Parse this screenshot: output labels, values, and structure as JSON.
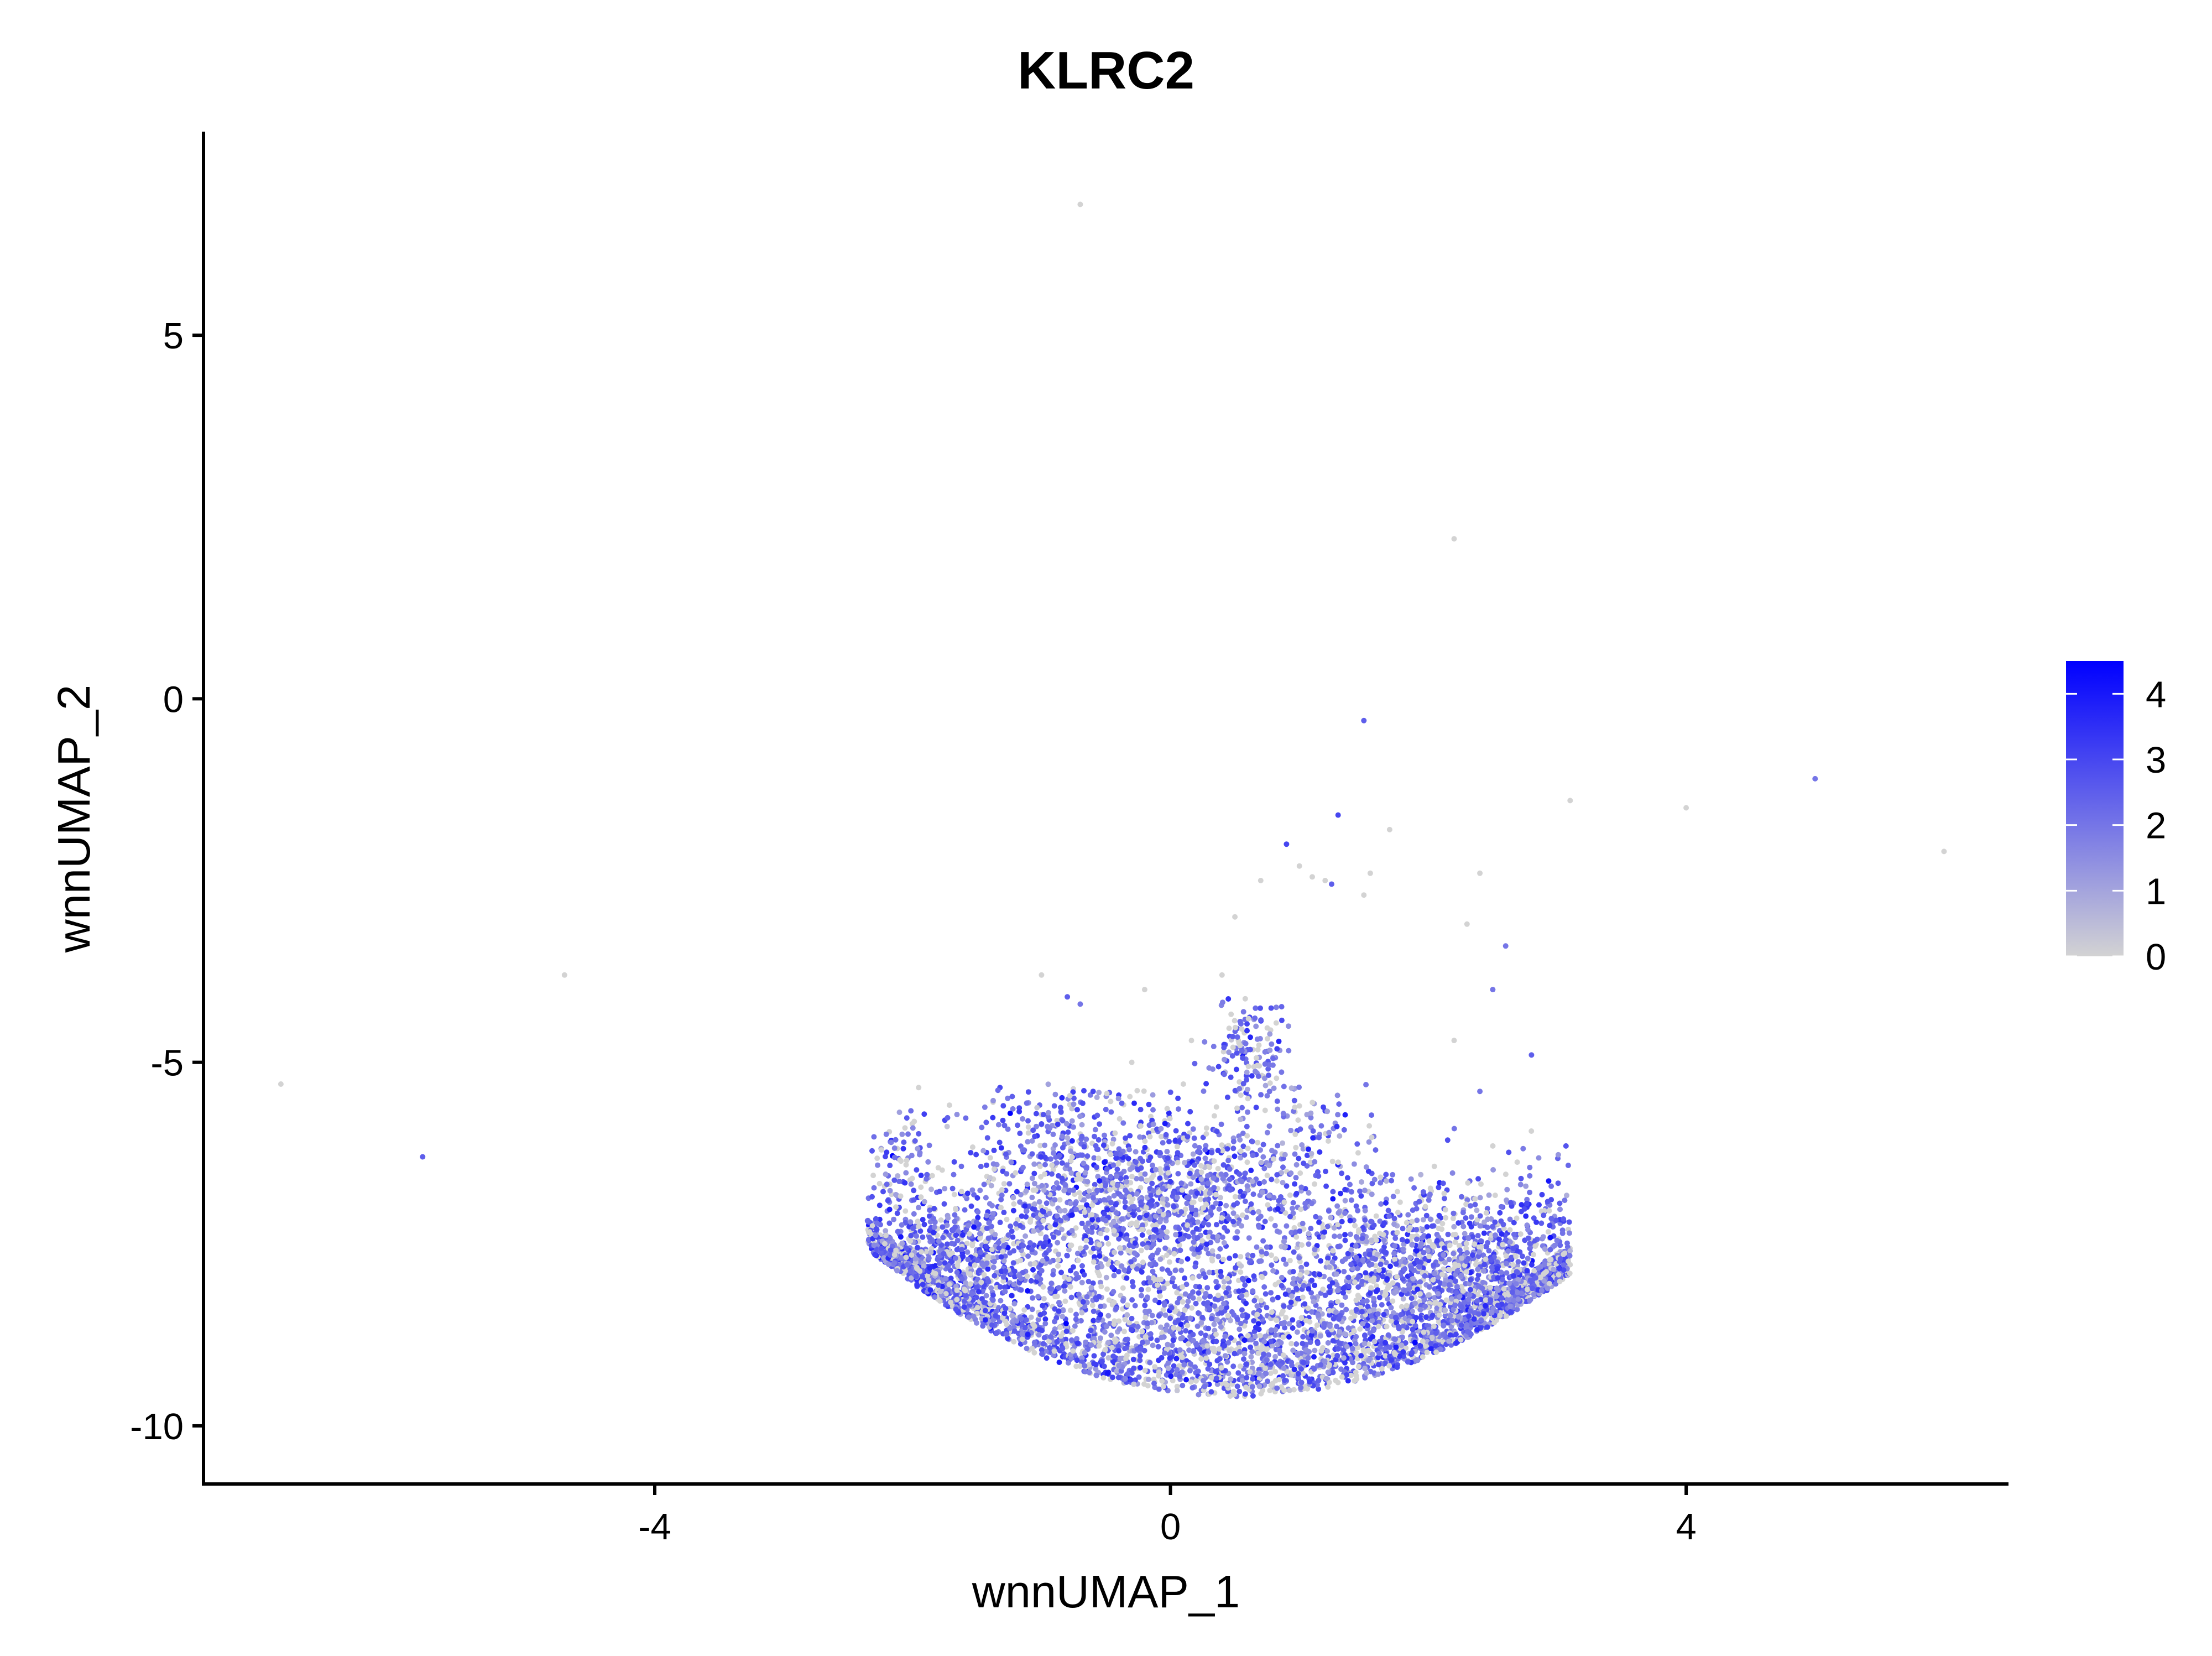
{
  "chart_data": {
    "type": "scatter",
    "title": "KLRC2",
    "xlabel": "wnnUMAP_1",
    "ylabel": "wnnUMAP_2",
    "xlim": [
      -7.5,
      6.5
    ],
    "ylim": [
      -10.8,
      7.8
    ],
    "xticks": [
      {
        "value": -4,
        "label": "-4"
      },
      {
        "value": 0,
        "label": "0"
      },
      {
        "value": 4,
        "label": "4"
      }
    ],
    "yticks": [
      {
        "value": 5,
        "label": "5"
      },
      {
        "value": 0,
        "label": "0"
      },
      {
        "value": -5,
        "label": "-5"
      },
      {
        "value": -10,
        "label": "-10"
      }
    ],
    "grid": false,
    "legend_position": "right",
    "colorbar": {
      "min": 0,
      "max": 4.5,
      "low_color": "#D3D3D3",
      "high_color": "#0000FF",
      "ticks": [
        {
          "value": 0,
          "label": "0"
        },
        {
          "value": 1,
          "label": "1"
        },
        {
          "value": 2,
          "label": "2"
        },
        {
          "value": 3,
          "label": "3"
        },
        {
          "value": 4,
          "label": "4"
        }
      ]
    },
    "points": [
      [
        -0.7,
        6.8,
        0
      ],
      [
        2.2,
        2.2,
        0
      ],
      [
        1.5,
        -0.3,
        2.5
      ],
      [
        5.0,
        -1.1,
        2.0
      ],
      [
        3.1,
        -1.4,
        0
      ],
      [
        4.0,
        -1.5,
        0
      ],
      [
        6.0,
        -2.1,
        0
      ],
      [
        1.3,
        -1.6,
        3.0
      ],
      [
        1.7,
        -1.8,
        0
      ],
      [
        0.9,
        -2.0,
        3.0
      ],
      [
        1.0,
        -2.3,
        0
      ],
      [
        1.1,
        -2.45,
        0
      ],
      [
        1.2,
        -2.5,
        0
      ],
      [
        1.25,
        -2.55,
        2.5
      ],
      [
        0.7,
        -2.5,
        0
      ],
      [
        1.5,
        -2.7,
        0
      ],
      [
        2.4,
        -2.4,
        0
      ],
      [
        1.55,
        -2.4,
        0
      ],
      [
        2.3,
        -3.1,
        0
      ],
      [
        0.5,
        -3.0,
        0
      ],
      [
        2.6,
        -3.4,
        2.0
      ],
      [
        -1.0,
        -3.8,
        0
      ],
      [
        -0.8,
        -4.1,
        2.5
      ],
      [
        -0.7,
        -4.2,
        2.0
      ],
      [
        -0.2,
        -4.0,
        0
      ],
      [
        0.4,
        -3.8,
        0
      ],
      [
        2.5,
        -4.0,
        2.0
      ],
      [
        2.8,
        -4.9,
        2.5
      ],
      [
        2.2,
        -4.7,
        0
      ],
      [
        2.4,
        -5.4,
        2.0
      ],
      [
        -4.7,
        -3.8,
        0
      ],
      [
        -6.9,
        -5.3,
        0
      ],
      [
        -5.8,
        -6.3,
        2.5
      ],
      [
        -0.3,
        -5.0,
        0
      ],
      [
        0.1,
        -5.3,
        0
      ],
      [
        0.6,
        -5.5,
        0
      ],
      [
        1.0,
        -5.6,
        0
      ],
      [
        -0.6,
        -5.4,
        3.0
      ],
      [
        -0.9,
        -5.6,
        2.5
      ],
      [
        -1.3,
        -5.8,
        3.0
      ]
    ],
    "clusters": [
      {
        "cx": 0.6,
        "cy": -8.9,
        "sx": 1.7,
        "sy": 0.55,
        "n": 2600
      },
      {
        "cx": 2.3,
        "cy": -7.9,
        "sx": 0.7,
        "sy": 0.6,
        "n": 1800
      },
      {
        "cx": -1.8,
        "cy": -7.8,
        "sx": 0.45,
        "sy": 0.5,
        "n": 1000
      },
      {
        "cx": -0.3,
        "cy": -7.1,
        "sx": 0.7,
        "sy": 0.6,
        "n": 1200
      },
      {
        "cx": -0.7,
        "cy": -6.0,
        "sx": 0.45,
        "sy": 0.55,
        "n": 280
      },
      {
        "cx": 0.6,
        "cy": -4.8,
        "sx": 0.15,
        "sy": 0.35,
        "n": 140
      },
      {
        "cx": 0.9,
        "cy": -6.0,
        "sx": 0.3,
        "sy": 0.6,
        "n": 160
      },
      {
        "cx": 0.2,
        "cy": -6.5,
        "sx": 0.35,
        "sy": 0.4,
        "n": 200
      },
      {
        "cx": -2.1,
        "cy": -6.5,
        "sx": 0.1,
        "sy": 0.5,
        "n": 80
      }
    ]
  }
}
